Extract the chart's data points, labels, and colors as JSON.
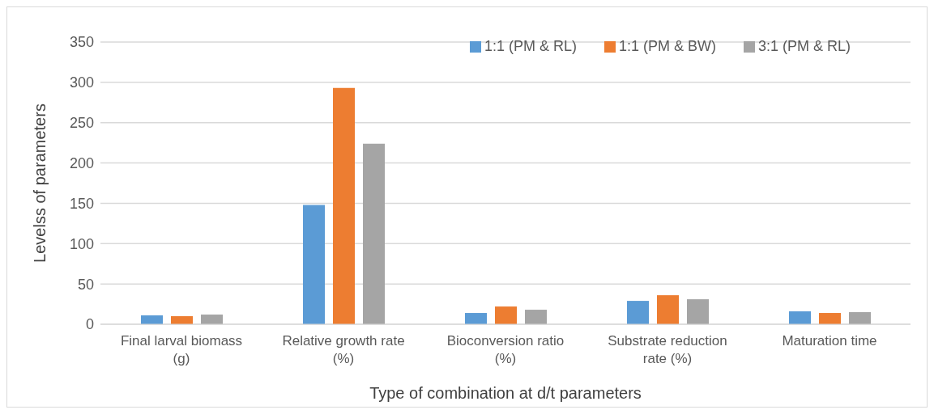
{
  "chart_data": {
    "type": "bar",
    "xlabel": "Type of combination at d/t parameters",
    "ylabel": "Levelss of parameters",
    "categories": [
      "Final larval biomass (g)",
      "Relative growth rate (%)",
      "Bioconversion ratio (%)",
      "Substrate reduction rate (%)",
      "Maturation time"
    ],
    "series": [
      {
        "name": "1:1 (PM & RL)",
        "color": "#5b9bd5",
        "values": [
          11,
          148,
          14,
          29,
          16
        ]
      },
      {
        "name": "1:1 (PM & BW)",
        "color": "#ed7d31",
        "values": [
          10,
          293,
          22,
          36,
          14
        ]
      },
      {
        "name": "3:1 (PM & RL)",
        "color": "#a5a5a5",
        "values": [
          12,
          224,
          18,
          31,
          15
        ]
      }
    ],
    "ylim": [
      0,
      350
    ],
    "yticks": [
      0,
      50,
      100,
      150,
      200,
      250,
      300,
      350
    ],
    "grid": "y",
    "legend": "top right"
  }
}
